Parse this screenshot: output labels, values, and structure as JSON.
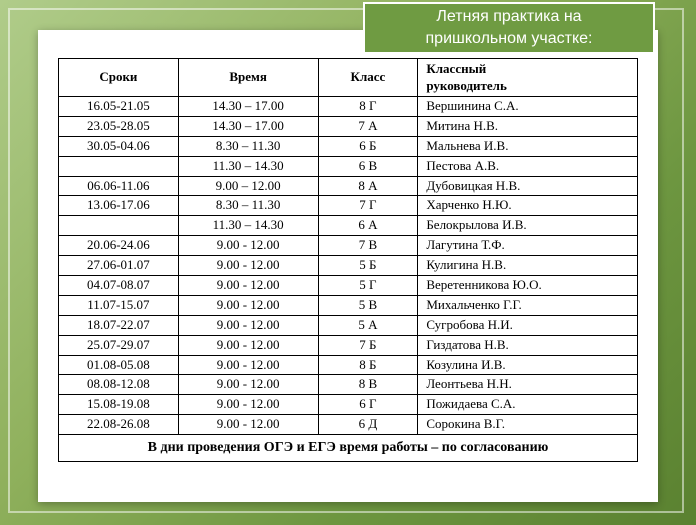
{
  "title_line1": "Летняя практика на",
  "title_line2": "пришкольном участке:",
  "columns": {
    "dates": "Сроки",
    "time": "Время",
    "class": "Класс",
    "teacher_l1": "Классный",
    "teacher_l2": "руководитель"
  },
  "rows": [
    {
      "dates": "16.05-21.05",
      "time": "14.30 – 17.00",
      "class": "8 Г",
      "teacher": "Вершинина  С.А."
    },
    {
      "dates": "23.05-28.05",
      "time": "14.30 – 17.00",
      "class": "7 А",
      "teacher": "Митина  Н.В."
    },
    {
      "dates": "30.05-04.06",
      "time": "8.30 – 11.30",
      "class": "6 Б",
      "teacher": "Мальнева И.В."
    },
    {
      "dates": "",
      "time": "11.30  – 14.30",
      "class": "6 В",
      "teacher": "Пестова  А.В."
    },
    {
      "dates": "06.06-11.06",
      "time": "9.00 – 12.00",
      "class": "8 А",
      "teacher": "Дубовицкая  Н.В."
    },
    {
      "dates": "13.06-17.06",
      "time": "8.30 – 11.30",
      "class": "7 Г",
      "teacher": "Харченко  Н.Ю."
    },
    {
      "dates": "",
      "time": "11.30  – 14.30",
      "class": "6 А",
      "teacher": "Белокрылова  И.В."
    },
    {
      "dates": "20.06-24.06",
      "time": "9.00 - 12.00",
      "class": "7 В",
      "teacher": "Лагутина Т.Ф."
    },
    {
      "dates": "27.06-01.07",
      "time": "9.00 - 12.00",
      "class": "5 Б",
      "teacher": "Кулигина  Н.В."
    },
    {
      "dates": "04.07-08.07",
      "time": "9.00 - 12.00",
      "class": "5 Г",
      "teacher": "Веретенникова  Ю.О."
    },
    {
      "dates": "11.07-15.07",
      "time": "9.00 - 12.00",
      "class": "5 В",
      "teacher": "Михальченко Г.Г."
    },
    {
      "dates": "18.07-22.07",
      "time": "9.00 - 12.00",
      "class": "5 А",
      "teacher": "Сугробова  Н.И."
    },
    {
      "dates": "25.07-29.07",
      "time": "9.00 - 12.00",
      "class": "7 Б",
      "teacher": "Гиздатова  Н.В."
    },
    {
      "dates": "01.08-05.08",
      "time": "9.00 - 12.00",
      "class": "8 Б",
      "teacher": "Козулина  И.В."
    },
    {
      "dates": "08.08-12.08",
      "time": "9.00 - 12.00",
      "class": "8 В",
      "teacher": "Леонтьева Н.Н."
    },
    {
      "dates": "15.08-19.08",
      "time": "9.00 - 12.00",
      "class": "6 Г",
      "teacher": "Пожидаева С.А."
    },
    {
      "dates": "22.08-26.08",
      "time": "9.00 - 12.00",
      "class": "6 Д",
      "teacher": "Сорокина  В.Г."
    }
  ],
  "footnote": "В дни проведения ОГЭ и ЕГЭ время работы – по согласованию",
  "colors": {
    "banner_bg": "#6f9b42",
    "banner_text": "#ffffff",
    "border": "#000000"
  }
}
